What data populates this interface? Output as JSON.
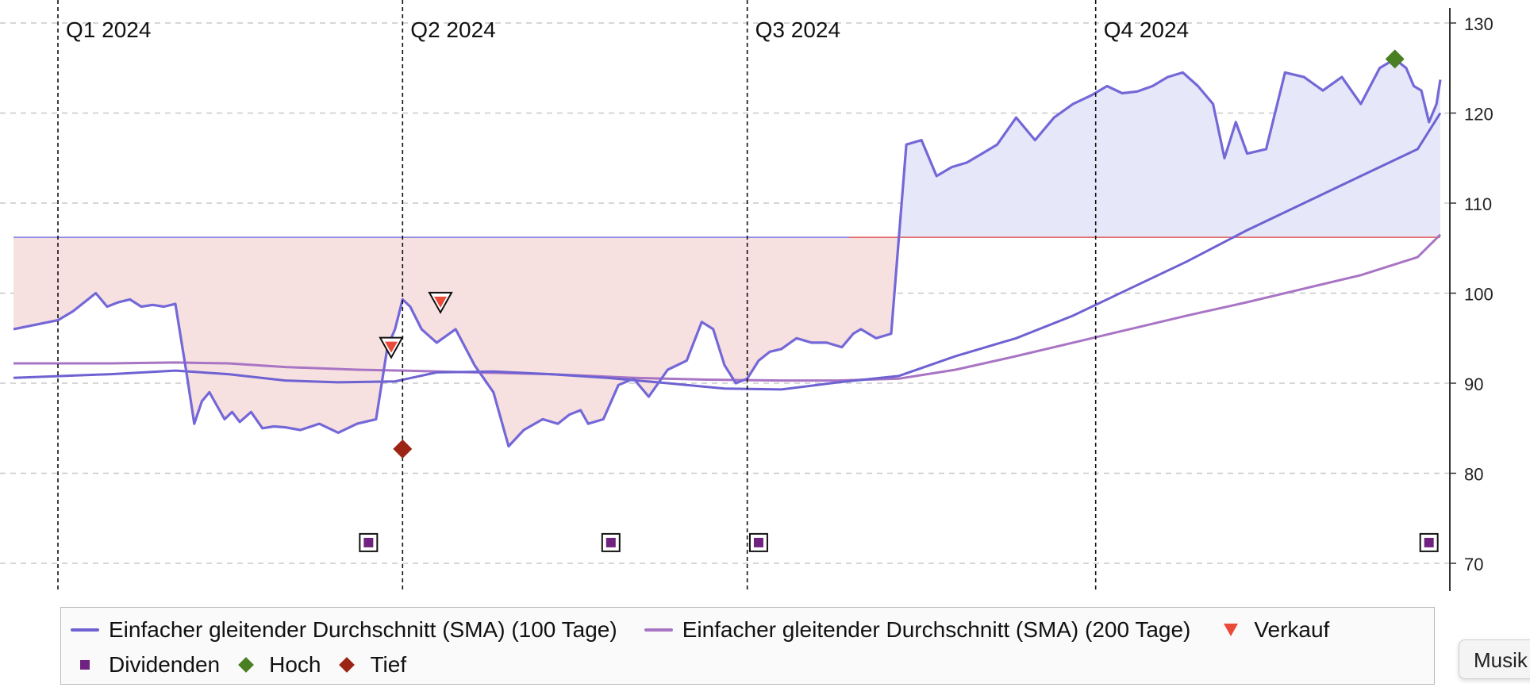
{
  "chart_data": {
    "type": "line",
    "title": "",
    "xlabel": "",
    "ylabel": "",
    "xlim": [
      "2024-01-01",
      "2024-12-31"
    ],
    "ylim": [
      67,
      131
    ],
    "y_ticks": [
      70,
      80,
      90,
      100,
      110,
      120,
      130
    ],
    "y_axis_position": "right",
    "grid": {
      "horizontal": true,
      "style": "dashed"
    },
    "quarters": [
      {
        "label": "Q1 2024",
        "start": "2024-01-01"
      },
      {
        "label": "Q2 2024",
        "start": "2024-04-01"
      },
      {
        "label": "Q3 2024",
        "start": "2024-07-01"
      },
      {
        "label": "Q4 2024",
        "start": "2024-10-01"
      }
    ],
    "reference_level": 106.2,
    "fill_colors": {
      "above": "#e6e7f8",
      "below": "#f7e0e0"
    },
    "series": [
      {
        "key": "price",
        "color": "#7468d8",
        "x": [
          "2023-12-21",
          "2024-01-01",
          "2024-01-05",
          "2024-01-08",
          "2024-01-11",
          "2024-01-14",
          "2024-01-17",
          "2024-01-20",
          "2024-01-23",
          "2024-01-26",
          "2024-01-29",
          "2024-02-01",
          "2024-02-04",
          "2024-02-06",
          "2024-02-08",
          "2024-02-10",
          "2024-02-12",
          "2024-02-14",
          "2024-02-16",
          "2024-02-18",
          "2024-02-21",
          "2024-02-24",
          "2024-02-27",
          "2024-03-01",
          "2024-03-05",
          "2024-03-10",
          "2024-03-15",
          "2024-03-20",
          "2024-03-25",
          "2024-03-28",
          "2024-03-30",
          "2024-04-01",
          "2024-04-03",
          "2024-04-06",
          "2024-04-10",
          "2024-04-15",
          "2024-04-20",
          "2024-04-25",
          "2024-04-29",
          "2024-05-03",
          "2024-05-08",
          "2024-05-12",
          "2024-05-15",
          "2024-05-18",
          "2024-05-20",
          "2024-05-24",
          "2024-05-28",
          "2024-06-01",
          "2024-06-05",
          "2024-06-10",
          "2024-06-15",
          "2024-06-19",
          "2024-06-22",
          "2024-06-25",
          "2024-06-28",
          "2024-07-01",
          "2024-07-04",
          "2024-07-07",
          "2024-07-10",
          "2024-07-14",
          "2024-07-18",
          "2024-07-22",
          "2024-07-26",
          "2024-07-28",
          "2024-07-29",
          "2024-07-31",
          "2024-08-04",
          "2024-08-08",
          "2024-08-12",
          "2024-08-16",
          "2024-08-20",
          "2024-08-24",
          "2024-08-28",
          "2024-09-01",
          "2024-09-05",
          "2024-09-10",
          "2024-09-15",
          "2024-09-20",
          "2024-09-25",
          "2024-09-30",
          "2024-10-04",
          "2024-10-08",
          "2024-10-12",
          "2024-10-16",
          "2024-10-20",
          "2024-10-24",
          "2024-10-28",
          "2024-11-01",
          "2024-11-04",
          "2024-11-07",
          "2024-11-10",
          "2024-11-15",
          "2024-11-20",
          "2024-11-25",
          "2024-11-30",
          "2024-12-05",
          "2024-12-10",
          "2024-12-15",
          "2024-12-19",
          "2024-12-22",
          "2024-12-24",
          "2024-12-26",
          "2024-12-28",
          "2024-12-30",
          "2024-12-31"
        ],
        "y": [
          96,
          97,
          98,
          99,
          100,
          98.5,
          99,
          99.3,
          98.5,
          98.7,
          98.5,
          98.8,
          91,
          85.5,
          88,
          89,
          87.5,
          86,
          86.8,
          85.7,
          86.8,
          85,
          85.2,
          85.1,
          84.8,
          85.5,
          84.5,
          85.5,
          86,
          94,
          96,
          99.3,
          98.5,
          96,
          94.5,
          96,
          92,
          89,
          83,
          84.8,
          86,
          85.5,
          86.5,
          87,
          85.5,
          86,
          89.8,
          90.5,
          88.5,
          91.5,
          92.5,
          96.8,
          96,
          92,
          90,
          90.5,
          92.5,
          93.5,
          93.8,
          95,
          94.5,
          94.5,
          94,
          95,
          95.5,
          96,
          95,
          95.5,
          116.5,
          117,
          113,
          114,
          114.5,
          115.5,
          116.5,
          119.5,
          117,
          119.5,
          121,
          122,
          123,
          122.2,
          122.4,
          123,
          124,
          124.5,
          123,
          121,
          115,
          119,
          115.5,
          116,
          124.5,
          124,
          122.5,
          124,
          121,
          125,
          126,
          125,
          123,
          122.5,
          119,
          121,
          123.7
        ]
      },
      {
        "name": "Einfacher gleitender Durchschnitt (SMA) (100 Tage)",
        "key": "sma100",
        "color": "#6e62d2",
        "x": [
          "2023-12-21",
          "2024-01-15",
          "2024-02-01",
          "2024-02-15",
          "2024-03-01",
          "2024-03-15",
          "2024-03-30",
          "2024-04-10",
          "2024-04-25",
          "2024-05-10",
          "2024-05-25",
          "2024-06-10",
          "2024-06-25",
          "2024-07-10",
          "2024-07-25",
          "2024-08-10",
          "2024-08-25",
          "2024-09-10",
          "2024-09-25",
          "2024-10-10",
          "2024-10-25",
          "2024-11-10",
          "2024-11-25",
          "2024-12-10",
          "2024-12-25",
          "2024-12-31"
        ],
        "y": [
          90.6,
          91,
          91.4,
          91,
          90.3,
          90.1,
          90.2,
          91.2,
          91.3,
          91,
          90.6,
          90,
          89.4,
          89.3,
          90.1,
          90.8,
          93,
          95,
          97.5,
          100.5,
          103.5,
          107,
          110,
          113,
          116,
          120
        ]
      },
      {
        "name": "Einfacher gleitender Durchschnitt (SMA) (200 Tage)",
        "key": "sma200",
        "color": "#a874c4",
        "x": [
          "2023-12-21",
          "2024-01-15",
          "2024-02-01",
          "2024-02-15",
          "2024-03-01",
          "2024-03-20",
          "2024-04-01",
          "2024-04-20",
          "2024-05-10",
          "2024-06-01",
          "2024-06-20",
          "2024-07-10",
          "2024-07-25",
          "2024-08-10",
          "2024-08-25",
          "2024-09-10",
          "2024-09-25",
          "2024-10-10",
          "2024-10-25",
          "2024-11-10",
          "2024-11-25",
          "2024-12-10",
          "2024-12-25",
          "2024-12-31"
        ],
        "y": [
          92.2,
          92.2,
          92.3,
          92.2,
          91.8,
          91.5,
          91.4,
          91.2,
          91,
          90.6,
          90.4,
          90.3,
          90.3,
          90.5,
          91.5,
          93,
          94.5,
          96,
          97.5,
          99,
          100.5,
          102,
          104,
          106.5
        ]
      }
    ],
    "markers": [
      {
        "name": "Verkauf",
        "key": "verkauf",
        "shape": "triangle-down",
        "color": "#e94a3a",
        "points": [
          {
            "x": "2024-03-29",
            "y": 94
          },
          {
            "x": "2024-04-11",
            "y": 99
          }
        ]
      },
      {
        "name": "Dividenden",
        "key": "dividenden",
        "shape": "square",
        "color": "#6f2280",
        "points": [
          {
            "x": "2024-03-23",
            "y": 72.3
          },
          {
            "x": "2024-05-26",
            "y": 72.3
          },
          {
            "x": "2024-07-04",
            "y": 72.3
          },
          {
            "x": "2024-12-28",
            "y": 72.3
          }
        ]
      },
      {
        "name": "Hoch",
        "key": "hoch",
        "shape": "diamond",
        "color": "#4a7f22",
        "points": [
          {
            "x": "2024-12-19",
            "y": 126
          }
        ]
      },
      {
        "name": "Tief",
        "key": "tief",
        "shape": "diamond",
        "color": "#9b2415",
        "points": [
          {
            "x": "2024-04-01",
            "y": 82.7
          }
        ]
      }
    ],
    "legend_position": "bottom"
  },
  "legend": {
    "sma100": "Einfacher gleitender Durchschnitt (SMA) (100 Tage)",
    "sma200": "Einfacher gleitender Durchschnitt (SMA) (200 Tage)",
    "verkauf": "Verkauf",
    "dividenden": "Dividenden",
    "hoch": "Hoch",
    "tief": "Tief"
  },
  "tooltip": {
    "text": "Musik"
  },
  "colors": {
    "sma100": "#6e62d2",
    "sma200": "#a874c4",
    "verkauf": "#e94a3a",
    "dividenden": "#6f2280",
    "hoch": "#4a7f22",
    "tief": "#9b2415"
  }
}
